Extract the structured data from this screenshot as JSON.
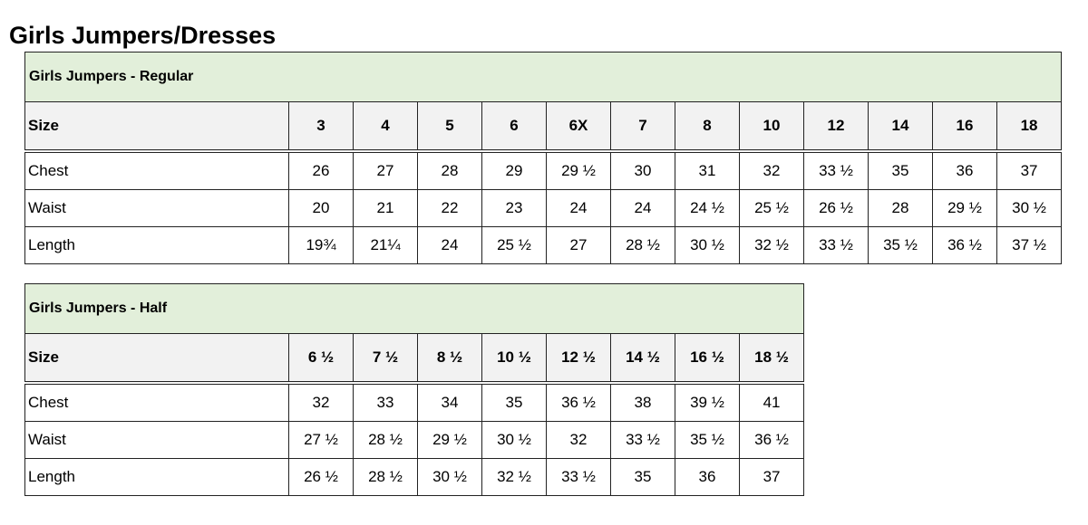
{
  "page_title": "Girls Jumpers/Dresses",
  "tables": [
    {
      "title": "Girls Jumpers - Regular",
      "header_label": "Size",
      "sizes": [
        "3",
        "4",
        "5",
        "6",
        "6X",
        "7",
        "8",
        "10",
        "12",
        "14",
        "16",
        "18"
      ],
      "rows": [
        {
          "label": "Chest",
          "values": [
            "26",
            "27",
            "28",
            "29",
            "29 ½",
            "30",
            "31",
            "32",
            "33 ½",
            "35",
            "36",
            "37"
          ]
        },
        {
          "label": "Waist",
          "values": [
            "20",
            "21",
            "22",
            "23",
            "24",
            "24",
            "24 ½",
            "25 ½",
            "26 ½",
            "28",
            "29 ½",
            "30 ½"
          ]
        },
        {
          "label": "Length",
          "values": [
            "19¾",
            "21¼",
            "24",
            "25 ½",
            "27",
            "28 ½",
            "30 ½",
            "32 ½",
            "33 ½",
            "35 ½",
            "36 ½",
            "37 ½"
          ]
        }
      ]
    },
    {
      "title": "Girls Jumpers - Half",
      "header_label": "Size",
      "sizes": [
        "6 ½",
        "7 ½",
        "8 ½",
        "10 ½",
        "12 ½",
        "14 ½",
        "16 ½",
        "18 ½"
      ],
      "rows": [
        {
          "label": "Chest",
          "values": [
            "32",
            "33",
            "34",
            "35",
            "36 ½",
            "38",
            "39 ½",
            "41"
          ]
        },
        {
          "label": "Waist",
          "values": [
            "27 ½",
            "28 ½",
            "29 ½",
            "30 ½",
            "32",
            "33 ½",
            "35 ½",
            "36 ½"
          ]
        },
        {
          "label": "Length",
          "values": [
            "26 ½",
            "28 ½",
            "30 ½",
            "32 ½",
            "33 ½",
            "35",
            "36",
            "37"
          ]
        }
      ]
    }
  ],
  "colors": {
    "title_row_bg": "#e2efda",
    "header_row_bg": "#f2f2f2",
    "border": "#222222"
  }
}
